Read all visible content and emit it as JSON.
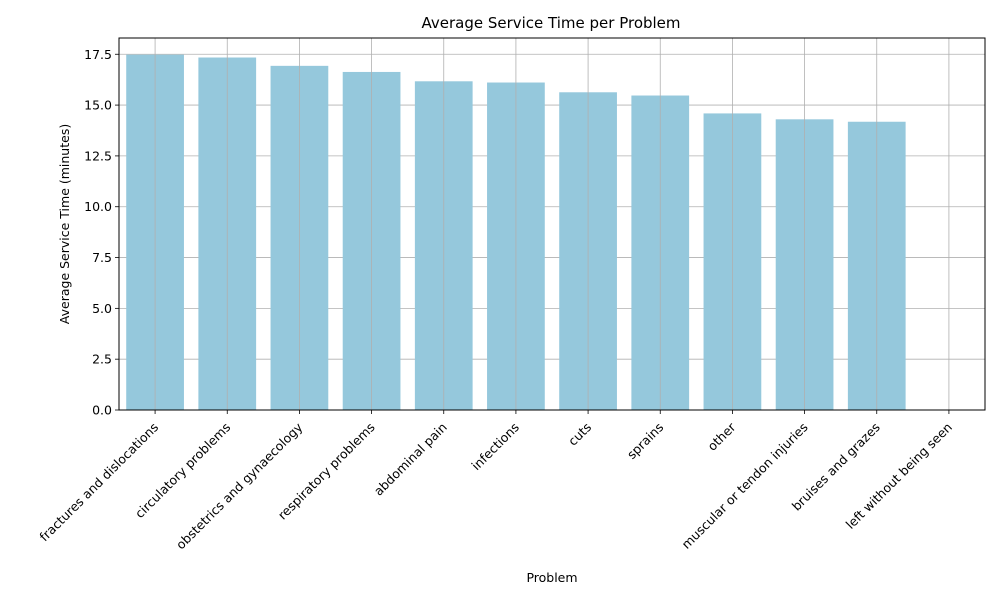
{
  "chart_data": {
    "type": "bar",
    "title": "Average Service Time per Problem",
    "xlabel": "Problem",
    "ylabel": "Average Service Time (minutes)",
    "categories": [
      "fractures and dislocations",
      "circulatory problems",
      "obstetrics and gynaecology",
      "respiratory problems",
      "abdominal pain",
      "infections",
      "cuts",
      "sprains",
      "other",
      "muscular or tendon injuries",
      "bruises and grazes",
      "left without being seen"
    ],
    "values": [
      17.48,
      17.34,
      16.93,
      16.63,
      16.17,
      16.11,
      15.63,
      15.47,
      14.59,
      14.3,
      14.18,
      0
    ],
    "ylim": [
      0,
      18.3
    ],
    "yticks": [
      0.0,
      2.5,
      5.0,
      7.5,
      10.0,
      12.5,
      15.0,
      17.5
    ],
    "ytick_labels": [
      "0.0",
      "2.5",
      "5.0",
      "7.5",
      "10.0",
      "12.5",
      "15.0",
      "17.5"
    ],
    "grid": true,
    "colors": {
      "bar": "#95c8dc",
      "grid": "#b0b0b0",
      "axis": "#000000"
    }
  }
}
